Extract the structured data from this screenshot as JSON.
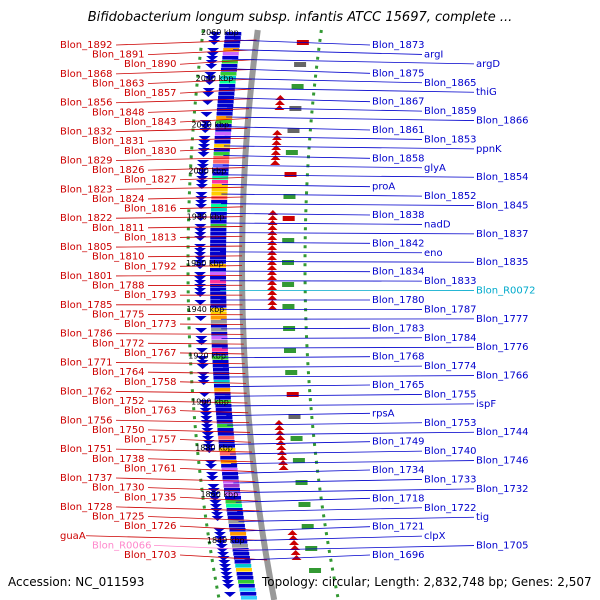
{
  "title": "Bifidobacterium longum subsp. infantis ATCC 15697, complete ...",
  "accession": "Accession: NC_011593",
  "topology": "Topology: circular; Length: 2,832,748 bp; Genes: 2,507",
  "colors": {
    "reverse": "#cc0000",
    "forward": "#0000cc",
    "rna": "#00aacc",
    "pseudo": "#ff88cc",
    "backbone": "#999999",
    "dots": "#339933"
  },
  "ticks": [
    "2060 kbp",
    "2040 kbp",
    "2020 kbp",
    "2000 kbp",
    "1980 kbp",
    "1960 kbp",
    "1940 kbp",
    "1920 kbp",
    "1900 kbp",
    "1880 kbp",
    "1860 kbp",
    "1840 kbp"
  ],
  "left_labels": [
    {
      "t": "Blon_1892",
      "c": "r"
    },
    {
      "t": "Blon_1891",
      "c": "r"
    },
    {
      "t": "Blon_1890",
      "c": "r"
    },
    {
      "t": "Blon_1868",
      "c": "r"
    },
    {
      "t": "Blon_1863",
      "c": "r"
    },
    {
      "t": "Blon_1857",
      "c": "r"
    },
    {
      "t": "Blon_1856",
      "c": "r"
    },
    {
      "t": "Blon_1848",
      "c": "r"
    },
    {
      "t": "Blon_1843",
      "c": "r"
    },
    {
      "t": "Blon_1832",
      "c": "r"
    },
    {
      "t": "Blon_1831",
      "c": "r"
    },
    {
      "t": "Blon_1830",
      "c": "r"
    },
    {
      "t": "Blon_1829",
      "c": "r"
    },
    {
      "t": "Blon_1826",
      "c": "r"
    },
    {
      "t": "Blon_1827",
      "c": "r"
    },
    {
      "t": "Blon_1823",
      "c": "r"
    },
    {
      "t": "Blon_1824",
      "c": "r"
    },
    {
      "t": "Blon_1816",
      "c": "r"
    },
    {
      "t": "Blon_1822",
      "c": "r"
    },
    {
      "t": "Blon_1811",
      "c": "r"
    },
    {
      "t": "Blon_1813",
      "c": "r"
    },
    {
      "t": "Blon_1805",
      "c": "r"
    },
    {
      "t": "Blon_1810",
      "c": "r"
    },
    {
      "t": "Blon_1792",
      "c": "r"
    },
    {
      "t": "Blon_1801",
      "c": "r"
    },
    {
      "t": "Blon_1788",
      "c": "r"
    },
    {
      "t": "Blon_1793",
      "c": "r"
    },
    {
      "t": "Blon_1785",
      "c": "r"
    },
    {
      "t": "Blon_1775",
      "c": "r"
    },
    {
      "t": "Blon_1773",
      "c": "r"
    },
    {
      "t": "Blon_1786",
      "c": "r"
    },
    {
      "t": "Blon_1772",
      "c": "r"
    },
    {
      "t": "Blon_1767",
      "c": "r"
    },
    {
      "t": "Blon_1771",
      "c": "r"
    },
    {
      "t": "Blon_1764",
      "c": "r"
    },
    {
      "t": "Blon_1758",
      "c": "r"
    },
    {
      "t": "Blon_1762",
      "c": "r"
    },
    {
      "t": "Blon_1752",
      "c": "r"
    },
    {
      "t": "Blon_1763",
      "c": "r"
    },
    {
      "t": "Blon_1756",
      "c": "r"
    },
    {
      "t": "Blon_1750",
      "c": "r"
    },
    {
      "t": "Blon_1757",
      "c": "r"
    },
    {
      "t": "Blon_1751",
      "c": "r"
    },
    {
      "t": "Blon_1738",
      "c": "r"
    },
    {
      "t": "Blon_1761",
      "c": "r"
    },
    {
      "t": "Blon_1737",
      "c": "r"
    },
    {
      "t": "Blon_1730",
      "c": "r"
    },
    {
      "t": "Blon_1735",
      "c": "r"
    },
    {
      "t": "Blon_1728",
      "c": "r"
    },
    {
      "t": "Blon_1725",
      "c": "r"
    },
    {
      "t": "Blon_1726",
      "c": "r"
    },
    {
      "t": "guaA",
      "c": "r"
    },
    {
      "t": "Blon_R0066",
      "c": "p"
    },
    {
      "t": "Blon_1703",
      "c": "r"
    }
  ],
  "right_labels": [
    {
      "t": "Blon_1873",
      "c": "b"
    },
    {
      "t": "argI",
      "c": "b"
    },
    {
      "t": "argD",
      "c": "b"
    },
    {
      "t": "Blon_1875",
      "c": "b"
    },
    {
      "t": "Blon_1865",
      "c": "b"
    },
    {
      "t": "thiG",
      "c": "b"
    },
    {
      "t": "Blon_1867",
      "c": "b"
    },
    {
      "t": "Blon_1859",
      "c": "b"
    },
    {
      "t": "Blon_1866",
      "c": "b"
    },
    {
      "t": "Blon_1861",
      "c": "b"
    },
    {
      "t": "Blon_1853",
      "c": "b"
    },
    {
      "t": "ppnK",
      "c": "b"
    },
    {
      "t": "Blon_1858",
      "c": "b"
    },
    {
      "t": "glyA",
      "c": "b"
    },
    {
      "t": "Blon_1854",
      "c": "b"
    },
    {
      "t": "proA",
      "c": "b"
    },
    {
      "t": "Blon_1852",
      "c": "b"
    },
    {
      "t": "Blon_1845",
      "c": "b"
    },
    {
      "t": "Blon_1838",
      "c": "b"
    },
    {
      "t": "nadD",
      "c": "b"
    },
    {
      "t": "Blon_1837",
      "c": "b"
    },
    {
      "t": "Blon_1842",
      "c": "b"
    },
    {
      "t": "eno",
      "c": "b"
    },
    {
      "t": "Blon_1835",
      "c": "b"
    },
    {
      "t": "Blon_1834",
      "c": "b"
    },
    {
      "t": "Blon_1833",
      "c": "b"
    },
    {
      "t": "Blon_R0072",
      "c": "c"
    },
    {
      "t": "Blon_1780",
      "c": "b"
    },
    {
      "t": "Blon_1787",
      "c": "b"
    },
    {
      "t": "Blon_1777",
      "c": "b"
    },
    {
      "t": "Blon_1783",
      "c": "b"
    },
    {
      "t": "Blon_1784",
      "c": "b"
    },
    {
      "t": "Blon_1776",
      "c": "b"
    },
    {
      "t": "Blon_1768",
      "c": "b"
    },
    {
      "t": "Blon_1774",
      "c": "b"
    },
    {
      "t": "Blon_1766",
      "c": "b"
    },
    {
      "t": "Blon_1765",
      "c": "b"
    },
    {
      "t": "Blon_1755",
      "c": "b"
    },
    {
      "t": "ispF",
      "c": "b"
    },
    {
      "t": "rpsA",
      "c": "b"
    },
    {
      "t": "Blon_1753",
      "c": "b"
    },
    {
      "t": "Blon_1744",
      "c": "b"
    },
    {
      "t": "Blon_1749",
      "c": "b"
    },
    {
      "t": "Blon_1740",
      "c": "b"
    },
    {
      "t": "Blon_1746",
      "c": "b"
    },
    {
      "t": "Blon_1734",
      "c": "b"
    },
    {
      "t": "Blon_1733",
      "c": "b"
    },
    {
      "t": "Blon_1732",
      "c": "b"
    },
    {
      "t": "Blon_1718",
      "c": "b"
    },
    {
      "t": "Blon_1722",
      "c": "b"
    },
    {
      "t": "tig",
      "c": "b"
    },
    {
      "t": "Blon_1721",
      "c": "b"
    },
    {
      "t": "clpX",
      "c": "b"
    },
    {
      "t": "Blon_1705",
      "c": "b"
    },
    {
      "t": "Blon_1696",
      "c": "b"
    }
  ]
}
